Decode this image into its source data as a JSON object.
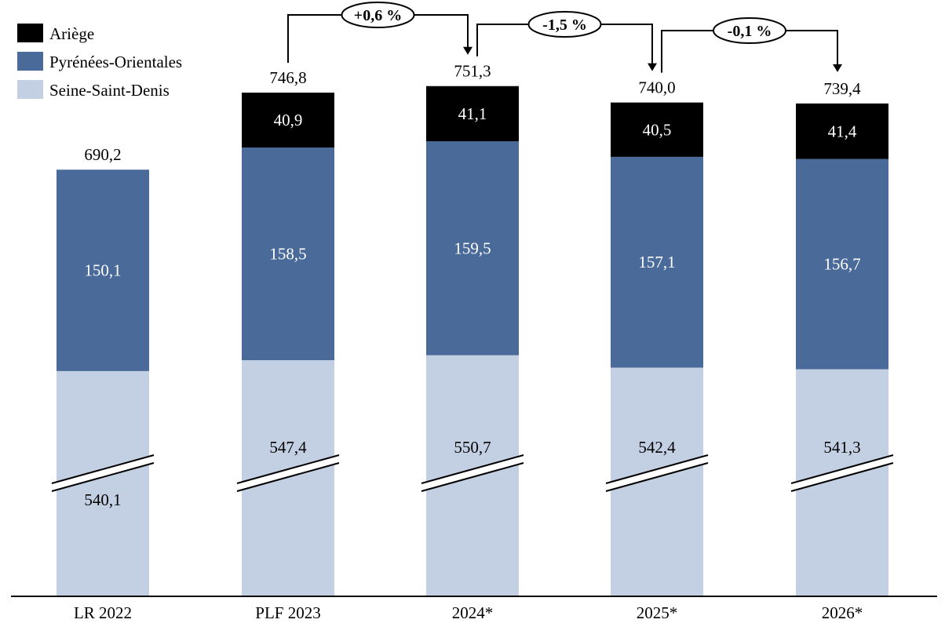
{
  "chart_data": {
    "type": "bar",
    "stacked": true,
    "broken_axis": true,
    "categories": [
      "LR 2022",
      "PLF 2023",
      "2024*",
      "2025*",
      "2026*"
    ],
    "series": [
      {
        "name": "Seine-Saint-Denis",
        "color": "#c3cfe2",
        "label_color": "#000000",
        "values": [
          540.1,
          547.4,
          550.7,
          542.4,
          541.3
        ]
      },
      {
        "name": "Pyrénées-Orientales",
        "color": "#4a6a99",
        "label_color": "#ffffff",
        "values": [
          150.1,
          158.5,
          159.5,
          157.1,
          156.7
        ]
      },
      {
        "name": "Ariège",
        "color": "#000000",
        "label_color": "#ffffff",
        "values": [
          null,
          40.9,
          41.1,
          40.5,
          41.4
        ]
      }
    ],
    "value_labels": {
      "Seine-Saint-Denis": [
        "540,1",
        "547,4",
        "550,7",
        "542,4",
        "541,3"
      ],
      "Pyrénées-Orientales": [
        "150,1",
        "158,5",
        "159,5",
        "157,1",
        "156,7"
      ],
      "Ariège": [
        "",
        "40,9",
        "41,1",
        "40,5",
        "41,4"
      ]
    },
    "totals": [
      690.2,
      746.8,
      751.3,
      740.0,
      739.4
    ],
    "total_labels": [
      "690,2",
      "746,8",
      "751,3",
      "740,0",
      "739,4"
    ],
    "changes": [
      {
        "from": 1,
        "to": 2,
        "label": "+0,6 %"
      },
      {
        "from": 2,
        "to": 3,
        "label": "-1,5 %"
      },
      {
        "from": 3,
        "to": 4,
        "label": "-0,1 %"
      }
    ],
    "legend_position": "top-left",
    "grid": false,
    "title": "",
    "xlabel": "",
    "ylabel": ""
  }
}
